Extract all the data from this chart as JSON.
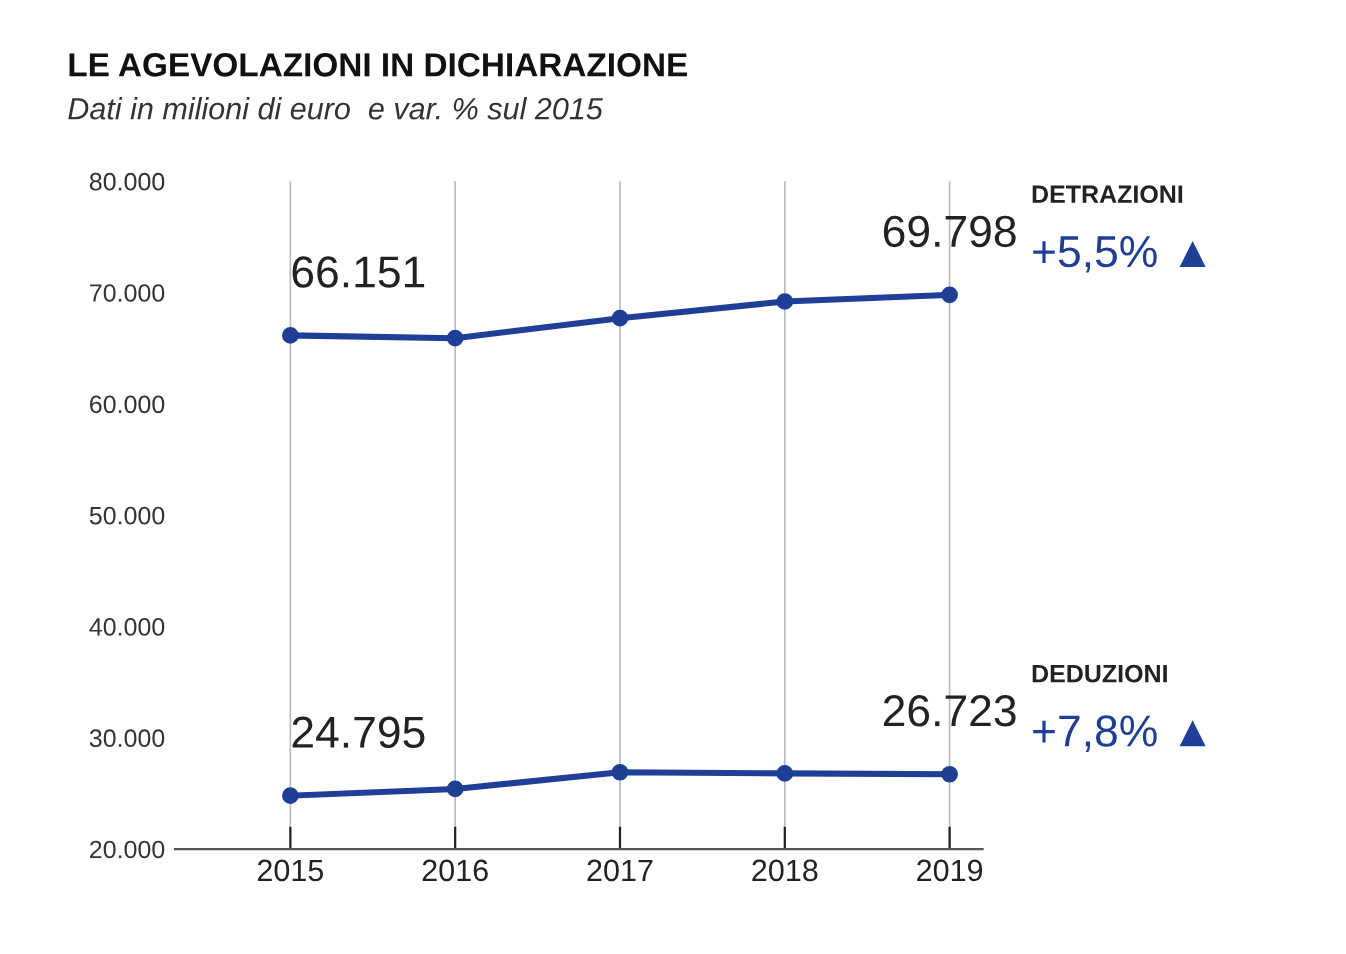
{
  "chart_data": {
    "type": "line",
    "title": "LE AGEVOLAZIONI IN DICHIARAZIONE",
    "subtitle": "Dati in milioni di euro  e var. % sul 2015",
    "categories": [
      "2015",
      "2016",
      "2017",
      "2018",
      "2019"
    ],
    "series": [
      {
        "name": "DETRAZIONI",
        "color": "#1f3f96",
        "values": [
          66151,
          65900,
          67700,
          69200,
          69798
        ],
        "value_labels": [
          "66.151",
          null,
          null,
          null,
          "69.798"
        ]
      },
      {
        "name": "DEDUZIONI",
        "color": "#1f3f96",
        "values": [
          24795,
          25400,
          26900,
          26800,
          26723
        ],
        "value_labels": [
          "24.795",
          null,
          null,
          null,
          "26.723"
        ]
      }
    ],
    "annotations": [
      "+5,5% ▲",
      "+7,8% ▲"
    ],
    "ylim": [
      20000,
      80000
    ],
    "yticks": [
      {
        "value": 20000,
        "label": "20.000"
      },
      {
        "value": 30000,
        "label": "30.000"
      },
      {
        "value": 40000,
        "label": "40.000"
      },
      {
        "value": 50000,
        "label": "50.000"
      },
      {
        "value": 60000,
        "label": "60.000"
      },
      {
        "value": 70000,
        "label": "70.000"
      },
      {
        "value": 80000,
        "label": "80.000"
      }
    ],
    "grid": "x",
    "legend": false,
    "marker": "circle",
    "line_style": "solid"
  }
}
